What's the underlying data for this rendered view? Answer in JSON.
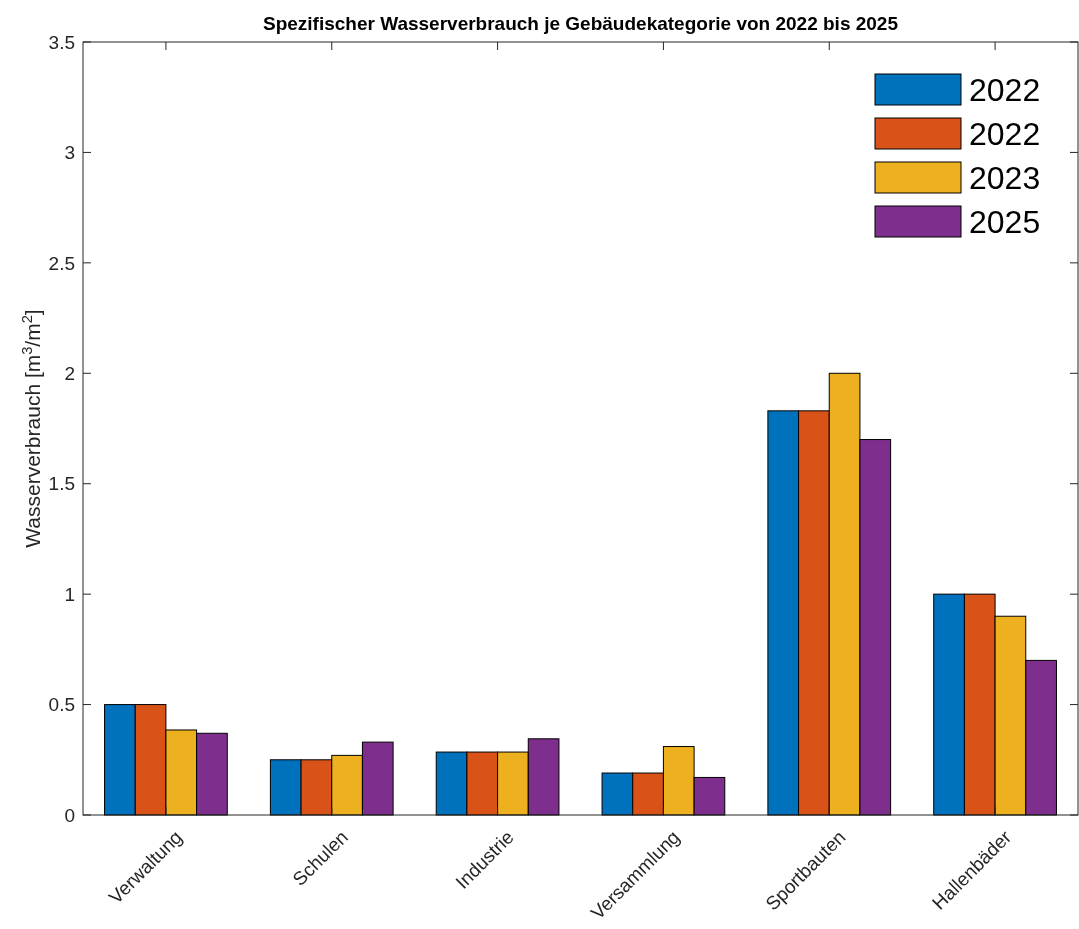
{
  "chart_data": {
    "type": "bar",
    "title": "Spezifischer Wasserverbrauch je Gebäudekategorie von 2022 bis 2025",
    "ylabel": "Wasserverbrauch [m$^{3}$/m$^{2}$]",
    "categories": [
      "Verwaltung",
      "Schulen",
      "Industrie",
      "Versammlung",
      "Sportbauten",
      "Hallenbäder"
    ],
    "series": [
      {
        "name": "2022",
        "color": "#0072bd",
        "values": [
          0.5,
          0.25,
          0.285,
          0.19,
          1.83,
          1.0
        ]
      },
      {
        "name": "2022",
        "color": "#d95319",
        "values": [
          0.5,
          0.25,
          0.285,
          0.19,
          1.83,
          1.0
        ]
      },
      {
        "name": "2023",
        "color": "#edb120",
        "values": [
          0.385,
          0.27,
          0.285,
          0.31,
          2.0,
          0.9
        ]
      },
      {
        "name": "2025",
        "color": "#7e2f8e",
        "values": [
          0.37,
          0.33,
          0.345,
          0.17,
          1.7,
          0.7
        ]
      }
    ],
    "ylim": [
      0,
      3.5
    ],
    "yticks": [
      0,
      0.5,
      1,
      1.5,
      2,
      2.5,
      3,
      3.5
    ],
    "grid": false,
    "legend": "top right"
  }
}
